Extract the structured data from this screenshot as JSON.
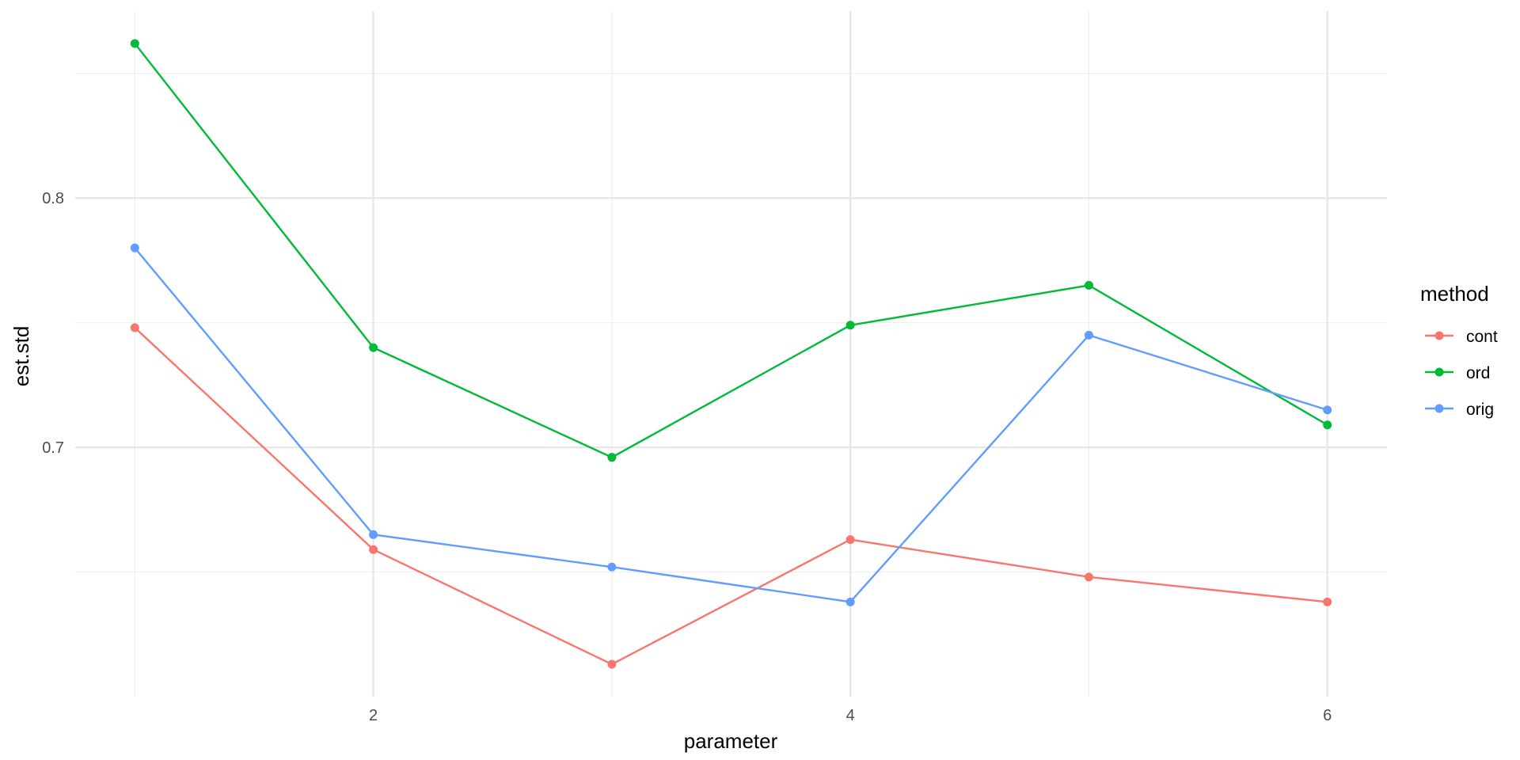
{
  "chart_data": {
    "type": "line",
    "xlabel": "parameter",
    "ylabel": "est.std",
    "x": [
      1,
      2,
      3,
      4,
      5,
      6
    ],
    "xlim": [
      0.75,
      6.25
    ],
    "ylim": [
      0.6,
      0.875
    ],
    "x_ticks": [
      2,
      4,
      6
    ],
    "x_tick_labels": [
      "2",
      "4",
      "6"
    ],
    "x_minor_ticks": [
      1,
      3,
      5
    ],
    "y_ticks": [
      0.7,
      0.8
    ],
    "y_tick_labels": [
      "0.7",
      "0.8"
    ],
    "y_minor_ticks": [
      0.65,
      0.75,
      0.85
    ],
    "grid": true,
    "legend": {
      "title": "method",
      "position": "right"
    },
    "series": [
      {
        "name": "cont",
        "color": "#F8766D",
        "values": [
          0.748,
          0.659,
          0.613,
          0.663,
          0.648,
          0.638
        ]
      },
      {
        "name": "ord",
        "color": "#00BA38",
        "values": [
          0.862,
          0.74,
          0.696,
          0.749,
          0.765,
          0.709
        ]
      },
      {
        "name": "orig",
        "color": "#619CFF",
        "values": [
          0.78,
          0.665,
          0.652,
          0.638,
          0.745,
          0.715
        ]
      }
    ]
  }
}
